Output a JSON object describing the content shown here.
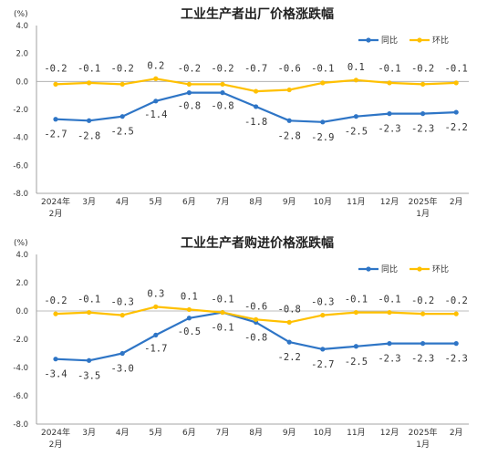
{
  "colors": {
    "yoy": "#2e75c6",
    "mom": "#ffc000",
    "zero_line": "#a6a6a6",
    "axis": "#888888"
  },
  "chart_data": [
    {
      "type": "line",
      "title": "工业生产者出厂价格涨跌幅",
      "unit": "(%)",
      "categories": [
        [
          "2024年",
          "2月"
        ],
        [
          "3月"
        ],
        [
          "4月"
        ],
        [
          "5月"
        ],
        [
          "6月"
        ],
        [
          "7月"
        ],
        [
          "8月"
        ],
        [
          "9月"
        ],
        [
          "10月"
        ],
        [
          "11月"
        ],
        [
          "12月"
        ],
        [
          "2025年",
          "1月"
        ],
        [
          "2月"
        ]
      ],
      "ylim": [
        -8.0,
        4.0
      ],
      "yticks": [
        "4.0",
        "2.0",
        "0.0",
        "-2.0",
        "-4.0",
        "-6.0",
        "-8.0"
      ],
      "legend_position": "top-right",
      "series": [
        {
          "name": "同比",
          "color": "#2e75c6",
          "values": [
            -2.7,
            -2.8,
            -2.5,
            -1.4,
            -0.8,
            -0.8,
            -1.8,
            -2.8,
            -2.9,
            -2.5,
            -2.3,
            -2.3,
            -2.2
          ],
          "labels": [
            "-2.7",
            "-2.8",
            "-2.5",
            "-1.4",
            "-0.8",
            "-0.8",
            "-1.8",
            "-2.8",
            "-2.9",
            "-2.5",
            "-2.3",
            "-2.3",
            "-2.2"
          ]
        },
        {
          "name": "环比",
          "color": "#ffc000",
          "values": [
            -0.2,
            -0.1,
            -0.2,
            0.2,
            -0.2,
            -0.2,
            -0.7,
            -0.6,
            -0.1,
            0.1,
            -0.1,
            -0.2,
            -0.1
          ],
          "labels": [
            "-0.2",
            "-0.1",
            "-0.2",
            "0.2",
            "-0.2",
            "-0.2",
            "-0.7",
            "-0.6",
            "-0.1",
            "0.1",
            "-0.1",
            "-0.2",
            "-0.1"
          ]
        }
      ]
    },
    {
      "type": "line",
      "title": "工业生产者购进价格涨跌幅",
      "unit": "(%)",
      "categories": [
        [
          "2024年",
          "2月"
        ],
        [
          "3月"
        ],
        [
          "4月"
        ],
        [
          "5月"
        ],
        [
          "6月"
        ],
        [
          "7月"
        ],
        [
          "8月"
        ],
        [
          "9月"
        ],
        [
          "10月"
        ],
        [
          "11月"
        ],
        [
          "12月"
        ],
        [
          "2025年",
          "1月"
        ],
        [
          "2月"
        ]
      ],
      "ylim": [
        -8.0,
        4.0
      ],
      "yticks": [
        "4.0",
        "2.0",
        "0.0",
        "-2.0",
        "-4.0",
        "-6.0",
        "-8.0"
      ],
      "legend_position": "top-right",
      "series": [
        {
          "name": "同比",
          "color": "#2e75c6",
          "values": [
            -3.4,
            -3.5,
            -3.0,
            -1.7,
            -0.5,
            -0.1,
            -0.8,
            -2.2,
            -2.7,
            -2.5,
            -2.3,
            -2.3,
            -2.3
          ],
          "labels": [
            "-3.4",
            "-3.5",
            "-3.0",
            "-1.7",
            "-0.5",
            "-0.1",
            "-0.8",
            "-2.2",
            "-2.7",
            "-2.5",
            "-2.3",
            "-2.3",
            "-2.3"
          ]
        },
        {
          "name": "环比",
          "color": "#ffc000",
          "values": [
            -0.2,
            -0.1,
            -0.3,
            0.3,
            0.1,
            -0.1,
            -0.6,
            -0.8,
            -0.3,
            -0.1,
            -0.1,
            -0.2,
            -0.2
          ],
          "labels": [
            "-0.2",
            "-0.1",
            "-0.3",
            "0.3",
            "0.1",
            "-0.1",
            "-0.6",
            "-0.8",
            "-0.3",
            "-0.1",
            "-0.1",
            "-0.2",
            "-0.2"
          ]
        }
      ]
    }
  ]
}
